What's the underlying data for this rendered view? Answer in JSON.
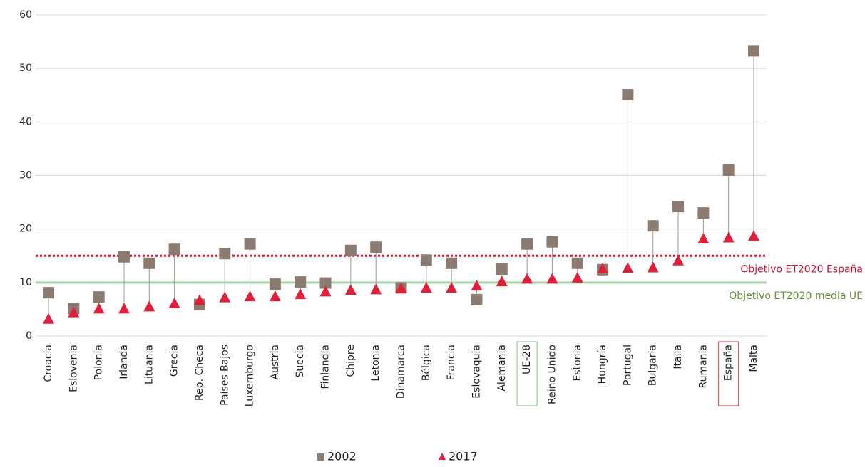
{
  "chart_data": {
    "type": "dot",
    "categories": [
      "Croacia",
      "Eslovenia",
      "Polonia",
      "Irlanda",
      "Lituania",
      "Grecia",
      "Rep. Checa",
      "Países Bajos",
      "Luxemburgo",
      "Austria",
      "Suecia",
      "Finlandia",
      "Chipre",
      "Letonia",
      "Dinamarca",
      "Bélgica",
      "Francia",
      "Eslovaquia",
      "Alemania",
      "UE-28",
      "Reino Unido",
      "Estonia",
      "Hungría",
      "Portugal",
      "Bulgaria",
      "Italia",
      "Rumania",
      "España",
      "Malta"
    ],
    "series": [
      {
        "name": "2002",
        "color": "#8c7b70",
        "marker": "square",
        "values": [
          8.1,
          5.1,
          7.3,
          14.8,
          13.6,
          16.2,
          5.9,
          15.4,
          17.2,
          9.7,
          10.1,
          9.9,
          16.0,
          16.6,
          9.0,
          14.2,
          13.6,
          6.8,
          12.5,
          17.2,
          17.6,
          13.6,
          12.4,
          45.1,
          20.6,
          24.2,
          23.0,
          31.0,
          53.3
        ]
      },
      {
        "name": "2017",
        "color": "#e0203a",
        "marker": "triangle",
        "values": [
          3.1,
          4.3,
          5.0,
          5.0,
          5.4,
          6.0,
          6.6,
          7.1,
          7.3,
          7.3,
          7.7,
          8.2,
          8.5,
          8.6,
          8.8,
          8.9,
          8.9,
          9.3,
          10.1,
          10.6,
          10.6,
          10.8,
          12.5,
          12.6,
          12.7,
          14.0,
          18.1,
          18.3,
          18.6
        ]
      }
    ],
    "ylim": [
      0,
      60
    ],
    "yticks": [
      0,
      10,
      20,
      30,
      40,
      50,
      60
    ],
    "grid": true,
    "legend": "bottom",
    "reference_lines": [
      {
        "value": 15,
        "label": "Objetivo ET2020 España",
        "color": "#c8102e",
        "style": "dotted"
      },
      {
        "value": 10,
        "label": "Objetivo ET2020 media UE",
        "color": "#a8d8a8",
        "label_color": "#6a8f3a",
        "style": "solid"
      }
    ],
    "highlights": [
      {
        "category": "UE-28",
        "color": "#7dc47d"
      },
      {
        "category": "España",
        "color": "#e0303a"
      }
    ]
  }
}
